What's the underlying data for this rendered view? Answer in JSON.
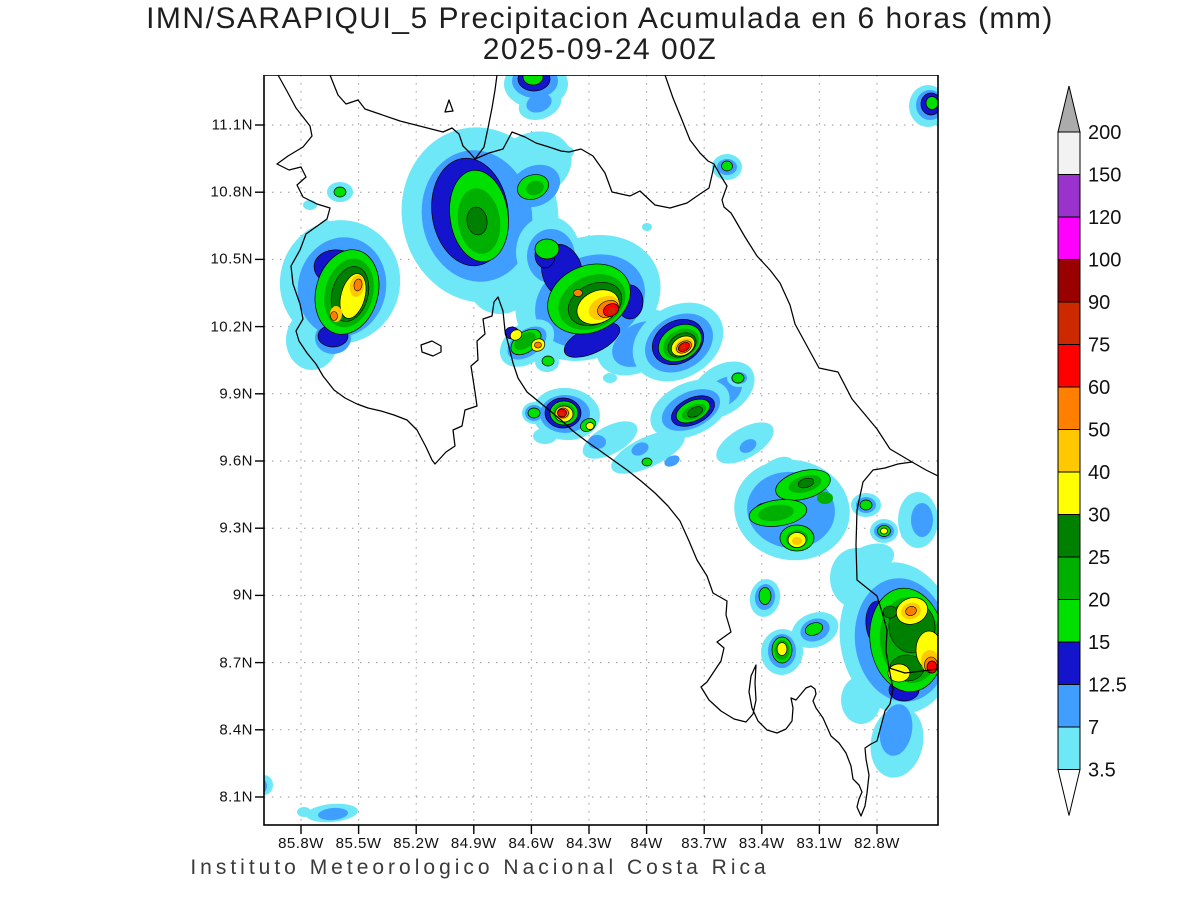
{
  "title": {
    "line1": "IMN/SARAPIQUI_5 Precipitacion Acumulada en 6 horas (mm)",
    "line2": "2025-09-24 00Z"
  },
  "footer": "Instituto Meteorologico Nacional Costa Rica",
  "axes": {
    "lat_labels": [
      "11.1N",
      "10.8N",
      "10.5N",
      "10.2N",
      "9.9N",
      "9.6N",
      "9.3N",
      "9N",
      "8.7N",
      "8.4N",
      "8.1N"
    ],
    "lon_labels": [
      "85.8W",
      "85.5W",
      "85.2W",
      "84.9W",
      "84.6W",
      "84.3W",
      "84W",
      "83.7W",
      "83.4W",
      "83.1W",
      "82.8W"
    ]
  },
  "colorbar": {
    "labels_top_to_bottom": [
      "200",
      "150",
      "120",
      "100",
      "90",
      "75",
      "60",
      "50",
      "40",
      "30",
      "25",
      "20",
      "15",
      "12.5",
      "7",
      "3.5"
    ],
    "segments_top_to_bottom": [
      {
        "upper_label": "200",
        "color": "#f2f2f2"
      },
      {
        "upper_label": "150",
        "color": "#9933cc"
      },
      {
        "upper_label": "120",
        "color": "#ff00ff"
      },
      {
        "upper_label": "100",
        "color": "#990000"
      },
      {
        "upper_label": "90",
        "color": "#cc2900"
      },
      {
        "upper_label": "75",
        "color": "#ff0000"
      },
      {
        "upper_label": "60",
        "color": "#ff8000"
      },
      {
        "upper_label": "50",
        "color": "#ffc800"
      },
      {
        "upper_label": "40",
        "color": "#ffff00"
      },
      {
        "upper_label": "30",
        "color": "#008000"
      },
      {
        "upper_label": "25",
        "color": "#00b000"
      },
      {
        "upper_label": "20",
        "color": "#00e000"
      },
      {
        "upper_label": "15",
        "color": "#1414cc"
      },
      {
        "upper_label": "12.5",
        "color": "#3f9eff"
      },
      {
        "upper_label": "7",
        "color": "#6ee8f7"
      }
    ],
    "bottom_label": "3.5",
    "overflow_arrow_color": "#ababab",
    "underflow_arrow_color": "#ffffff",
    "levels_mm": [
      3.5,
      7,
      12.5,
      15,
      20,
      25,
      30,
      40,
      50,
      60,
      75,
      90,
      100,
      120,
      150,
      200
    ]
  },
  "palette": {
    "lv35": "#6ee8f7",
    "lv7": "#3f9eff",
    "lv125": "#1414cc",
    "lv15": "#00e000",
    "lv20": "#00b000",
    "lv25": "#008000",
    "lv30": "#ffff00",
    "lv40": "#ffc800",
    "lv50": "#ff8000",
    "lv60": "#ff0000",
    "lv75": "#cc2900",
    "lv90": "#990000",
    "lv100": "#ff00ff",
    "lv120": "#9933cc",
    "lv150": "#f2f2f2",
    "lvgray": "#ababab"
  }
}
